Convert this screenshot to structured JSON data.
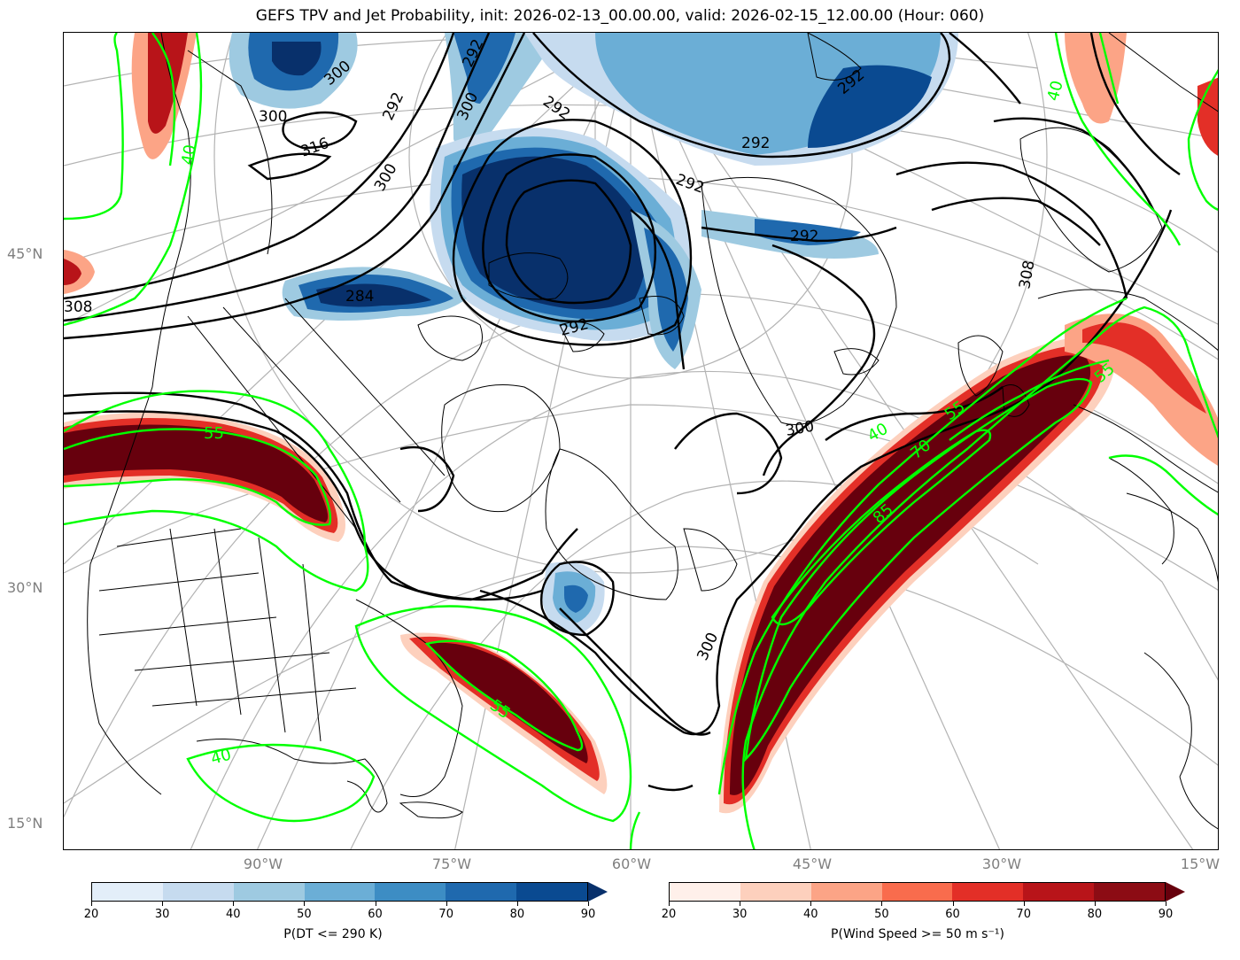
{
  "title": "GEFS TPV and Jet Probability, init: 2026-02-13_00.00.00, valid: 2026-02-15_12.00.00 (Hour: 060)",
  "lat_labels": [
    "45°N",
    "30°N",
    "15°N"
  ],
  "lon_labels": [
    "90°W",
    "75°W",
    "60°W",
    "45°W",
    "30°W",
    "15°W"
  ],
  "contour_labels": {
    "theta": [
      "292",
      "300",
      "292",
      "300",
      "300",
      "316",
      "300",
      "292",
      "292",
      "292",
      "292",
      "308",
      "284",
      "292",
      "300",
      "308",
      "300",
      "292"
    ],
    "jet": [
      "40",
      "55",
      "55",
      "40",
      "55",
      "70",
      "85",
      "40",
      "40",
      "55"
    ]
  },
  "colorbars": {
    "tpv": {
      "label": "P(DT <= 290 K)",
      "ticks": [
        "20",
        "30",
        "40",
        "50",
        "60",
        "70",
        "80",
        "90"
      ],
      "colors": [
        "#e3eef9",
        "#c6dbef",
        "#9ecae1",
        "#6baed6",
        "#3d8dc4",
        "#1f69ae",
        "#0a4a91"
      ],
      "extend_color": "#08306b"
    },
    "jet": {
      "label": "P(Wind Speed >= 50 m s⁻¹)",
      "ticks": [
        "20",
        "30",
        "40",
        "50",
        "60",
        "70",
        "80",
        "90"
      ],
      "colors": [
        "#fff0ea",
        "#fdd0bd",
        "#fca486",
        "#f96c4d",
        "#e32f27",
        "#b81419",
        "#8c0c14"
      ],
      "extend_color": "#67000d"
    }
  },
  "colors": {
    "jet_contour": "#00ff00",
    "theta_contour": "#000000",
    "graticule": "#b0b0b0",
    "axis_labels": "#7f7f7f"
  }
}
